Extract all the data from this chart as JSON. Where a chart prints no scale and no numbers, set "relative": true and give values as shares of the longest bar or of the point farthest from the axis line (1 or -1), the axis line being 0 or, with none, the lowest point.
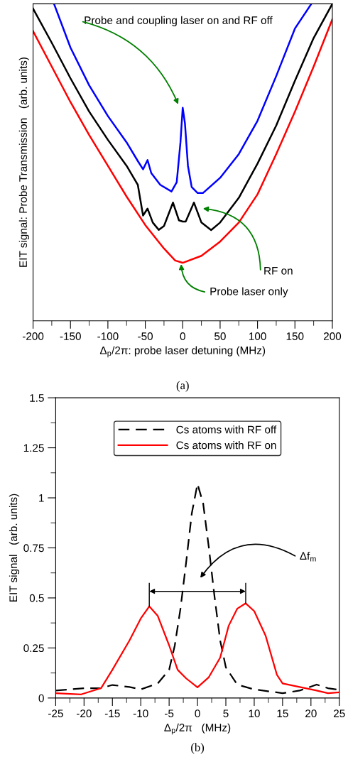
{
  "chart_data": [
    {
      "type": "line",
      "relative": true,
      "xlabel": "Δ$_{p}$/2π: probe laser detuning (MHz)",
      "ylabel": "EIT signal: Probe Transmission   (arb. units)",
      "xlim": [
        -200,
        200
      ],
      "xticks": [
        -200,
        -150,
        -100,
        -50,
        0,
        50,
        100,
        150,
        200
      ],
      "grid": false,
      "legend": false,
      "series": [
        {
          "color": "#0000ff",
          "x": [
            -172,
            -150,
            -125,
            -100,
            -75,
            -60,
            -53,
            -47,
            -42,
            -30,
            -15,
            -8,
            -3,
            0,
            3,
            7,
            12,
            20,
            27,
            50,
            75,
            100,
            125,
            150,
            172
          ],
          "values": [
            1.0,
            0.862,
            0.743,
            0.646,
            0.563,
            0.504,
            0.478,
            0.507,
            0.466,
            0.429,
            0.408,
            0.437,
            0.563,
            0.672,
            0.623,
            0.489,
            0.422,
            0.403,
            0.403,
            0.451,
            0.526,
            0.631,
            0.772,
            0.922,
            1.0
          ]
        },
        {
          "color": "#000000",
          "x": [
            -200,
            -175,
            -150,
            -125,
            -100,
            -75,
            -60,
            -53,
            -47,
            -40,
            -32,
            -25,
            -13,
            -5,
            0,
            4,
            15,
            25,
            38,
            50,
            75,
            100,
            125,
            150,
            175,
            200
          ],
          "values": [
            0.985,
            0.877,
            0.765,
            0.66,
            0.571,
            0.489,
            0.429,
            0.332,
            0.354,
            0.31,
            0.287,
            0.299,
            0.373,
            0.317,
            0.313,
            0.313,
            0.373,
            0.31,
            0.286,
            0.31,
            0.388,
            0.496,
            0.616,
            0.757,
            0.892,
            1.0
          ]
        },
        {
          "color": "#ff0000",
          "x": [
            -200,
            -175,
            -150,
            -125,
            -100,
            -75,
            -50,
            -25,
            -10,
            0,
            25,
            50,
            75,
            100,
            125,
            150,
            175,
            200
          ],
          "values": [
            0.914,
            0.802,
            0.69,
            0.586,
            0.489,
            0.392,
            0.302,
            0.228,
            0.19,
            0.183,
            0.205,
            0.25,
            0.31,
            0.399,
            0.526,
            0.66,
            0.802,
            0.951
          ]
        }
      ],
      "annotations": [
        "Probe and coupling laser on and RF off",
        "RF on",
        "Probe laser only",
        "(a)"
      ]
    },
    {
      "type": "line",
      "xlabel": "Δ$_{p}$/2π   (MHz)",
      "ylabel": "EIT signal   (arb. units)",
      "xlim": [
        -25,
        25
      ],
      "xticks": [
        -25,
        -20,
        -15,
        -10,
        -5,
        0,
        5,
        10,
        15,
        20,
        25
      ],
      "ylim": [
        0,
        1.5
      ],
      "yticks": [
        0,
        0.25,
        0.5,
        0.75,
        1,
        1.25,
        1.5
      ],
      "grid": false,
      "legend": "top",
      "series": [
        {
          "name": "Cs atoms with RF off",
          "color": "#000000",
          "line_style": "dashed",
          "x": [
            -25,
            -20,
            -17,
            -15,
            -12,
            -10,
            -7,
            -5,
            -4,
            -3,
            -2,
            -1,
            0,
            1,
            2,
            3,
            4,
            5,
            7,
            10,
            15,
            18,
            21,
            23,
            25
          ],
          "values": [
            0.037,
            0.049,
            0.049,
            0.065,
            0.055,
            0.043,
            0.073,
            0.141,
            0.263,
            0.446,
            0.678,
            0.923,
            1.07,
            0.972,
            0.752,
            0.507,
            0.287,
            0.153,
            0.067,
            0.043,
            0.024,
            0.037,
            0.067,
            0.049,
            0.04
          ]
        },
        {
          "name": "Cs atoms with RF on",
          "color": "#ff0000",
          "line_style": "solid",
          "x": [
            -25,
            -20.5,
            -17,
            -15,
            -12,
            -10,
            -8.5,
            -7,
            -5,
            -3.5,
            -2,
            0,
            2,
            4,
            5.5,
            7,
            8.5,
            10,
            12,
            14,
            15,
            18,
            21,
            23,
            25
          ],
          "values": [
            0.024,
            0.018,
            0.049,
            0.141,
            0.287,
            0.397,
            0.458,
            0.41,
            0.263,
            0.141,
            0.098,
            0.053,
            0.104,
            0.202,
            0.361,
            0.446,
            0.473,
            0.434,
            0.312,
            0.116,
            0.073,
            0.055,
            0.037,
            0.024,
            0.028
          ]
        }
      ],
      "annotations": [
        "Δf$_{m}$",
        "(b)"
      ]
    }
  ]
}
